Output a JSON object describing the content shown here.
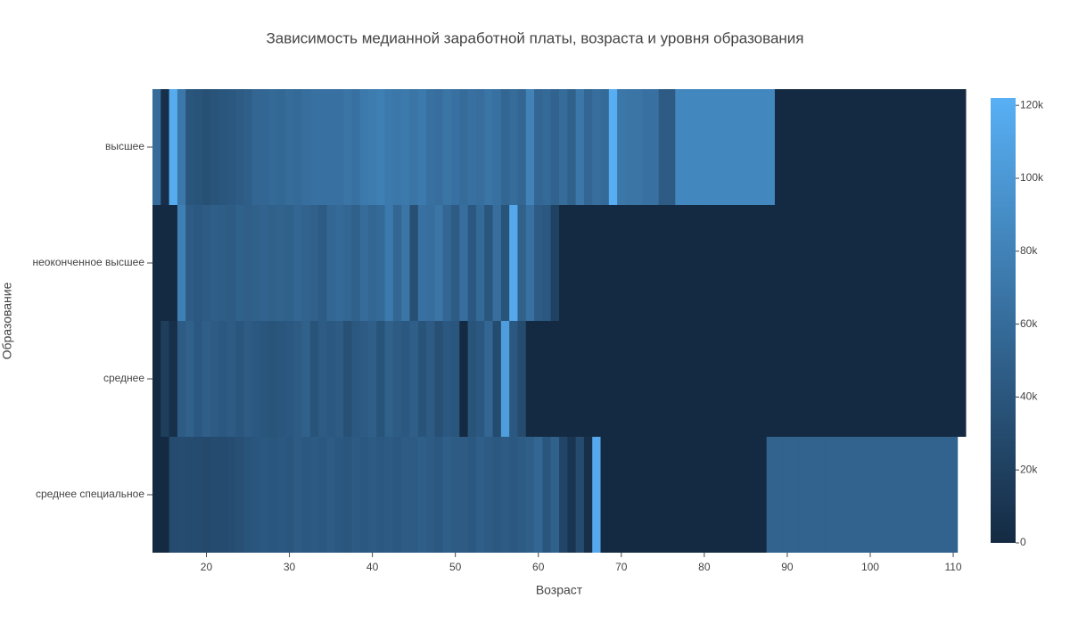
{
  "chart_data": {
    "type": "heatmap",
    "title": "Зависимость медианной заработной платы, возраста и уровня образования",
    "x_label": "Возраст",
    "y_label": "Образование",
    "categories": [
      "высшее",
      "неоконченное высшее",
      "среднее",
      "среднее специальное"
    ],
    "x": [
      14,
      15,
      16,
      17,
      18,
      19,
      20,
      21,
      22,
      23,
      24,
      25,
      26,
      27,
      28,
      29,
      30,
      31,
      32,
      33,
      34,
      35,
      36,
      37,
      38,
      39,
      40,
      41,
      42,
      43,
      44,
      45,
      46,
      47,
      48,
      49,
      50,
      51,
      52,
      53,
      54,
      55,
      56,
      57,
      58,
      59,
      60,
      61,
      62,
      63,
      64,
      65,
      66,
      67,
      68,
      69,
      70,
      71,
      72,
      73,
      74,
      75,
      76,
      77,
      78,
      79,
      80,
      81,
      82,
      83,
      84,
      85,
      86,
      87,
      88,
      89,
      90,
      91,
      92,
      93,
      94,
      95,
      96,
      97,
      98,
      99,
      100,
      101,
      102,
      103,
      104,
      105,
      106,
      107,
      108,
      109,
      110,
      111
    ],
    "z": [
      [
        60000,
        5000,
        118000,
        70000,
        40000,
        38000,
        35000,
        38000,
        40000,
        42000,
        45000,
        48000,
        55000,
        55000,
        58000,
        56000,
        60000,
        58000,
        62000,
        65000,
        65000,
        65000,
        65000,
        68000,
        65000,
        72000,
        75000,
        78000,
        72000,
        70000,
        72000,
        68000,
        72000,
        65000,
        62000,
        68000,
        65000,
        60000,
        65000,
        62000,
        68000,
        65000,
        55000,
        60000,
        55000,
        80000,
        55000,
        58000,
        52000,
        60000,
        50000,
        70000,
        55000,
        62000,
        58000,
        120000,
        70000,
        68000,
        68000,
        65000,
        65000,
        45000,
        45000,
        85000,
        85000,
        85000,
        85000,
        85000,
        85000,
        85000,
        85000,
        85000,
        85000,
        85000,
        85000,
        0,
        0,
        0,
        0,
        0,
        0,
        0,
        0,
        0,
        0,
        0,
        0,
        0,
        0,
        0,
        0,
        0,
        0,
        0,
        0,
        0,
        0,
        0
      ],
      [
        0,
        0,
        0,
        78000,
        45000,
        42000,
        45000,
        48000,
        46000,
        45000,
        50000,
        48000,
        50000,
        52000,
        50000,
        52000,
        50000,
        55000,
        52000,
        50000,
        45000,
        55000,
        58000,
        55000,
        50000,
        60000,
        55000,
        58000,
        72000,
        55000,
        68000,
        35000,
        65000,
        62000,
        68000,
        55000,
        45000,
        62000,
        42000,
        58000,
        40000,
        62000,
        38000,
        115000,
        50000,
        65000,
        45000,
        42000,
        22000,
        0,
        0,
        0,
        0,
        0,
        0,
        0,
        0,
        0,
        0,
        0,
        0,
        0,
        0,
        0,
        0,
        0,
        0,
        0,
        0,
        0,
        0,
        0,
        0,
        0,
        0,
        0,
        0,
        0,
        0,
        0,
        0,
        0,
        0,
        0,
        0,
        0,
        0,
        0,
        0,
        0,
        0,
        0,
        0,
        0,
        0,
        0,
        0,
        0
      ],
      [
        0,
        18000,
        5000,
        45000,
        50000,
        42000,
        48000,
        45000,
        42000,
        45000,
        40000,
        45000,
        42000,
        40000,
        38000,
        40000,
        42000,
        45000,
        50000,
        38000,
        45000,
        42000,
        45000,
        35000,
        42000,
        45000,
        48000,
        38000,
        50000,
        45000,
        42000,
        48000,
        38000,
        45000,
        35000,
        42000,
        40000,
        0,
        38000,
        42000,
        55000,
        30000,
        105000,
        42000,
        30000,
        0,
        0,
        0,
        0,
        0,
        0,
        0,
        0,
        0,
        0,
        0,
        0,
        0,
        0,
        0,
        0,
        0,
        0,
        0,
        0,
        0,
        0,
        0,
        0,
        0,
        0,
        0,
        0,
        0,
        0,
        0,
        0,
        0,
        0,
        0,
        0,
        0,
        0,
        0,
        0,
        0,
        0,
        0,
        0,
        0,
        0,
        0,
        0,
        0,
        0,
        0,
        0,
        0
      ],
      [
        0,
        0,
        30000,
        32000,
        30000,
        30000,
        28000,
        30000,
        30000,
        32000,
        35000,
        38000,
        40000,
        42000,
        40000,
        42000,
        40000,
        45000,
        42000,
        44000,
        42000,
        45000,
        42000,
        40000,
        44000,
        42000,
        45000,
        42000,
        44000,
        42000,
        45000,
        45000,
        48000,
        45000,
        42000,
        48000,
        45000,
        45000,
        42000,
        48000,
        45000,
        42000,
        45000,
        42000,
        45000,
        48000,
        55000,
        40000,
        50000,
        25000,
        10000,
        30000,
        5000,
        115000,
        0,
        0,
        0,
        0,
        0,
        0,
        0,
        0,
        0,
        0,
        0,
        0,
        0,
        0,
        0,
        0,
        0,
        0,
        0,
        0,
        52000,
        52000,
        52000,
        52000,
        52000,
        52000,
        52000,
        52000,
        52000,
        52000,
        52000,
        52000,
        52000,
        52000,
        52000,
        52000,
        52000,
        52000,
        52000,
        52000,
        52000,
        52000,
        52000
      ]
    ],
    "xlim": [
      13.5,
      111.5
    ],
    "xticks": [
      20,
      30,
      40,
      50,
      60,
      70,
      80,
      90,
      100,
      110
    ],
    "zlim": [
      0,
      122000
    ],
    "zticks": [
      0,
      {
        "value": 20000,
        "label": "20k"
      },
      {
        "value": 40000,
        "label": "40k"
      },
      {
        "value": 60000,
        "label": "60k"
      },
      {
        "value": 80000,
        "label": "80k"
      },
      {
        "value": 100000,
        "label": "100k"
      },
      {
        "value": 120000,
        "label": "120k"
      }
    ],
    "colorscale": [
      "#142a42",
      "#58b0f5"
    ]
  }
}
